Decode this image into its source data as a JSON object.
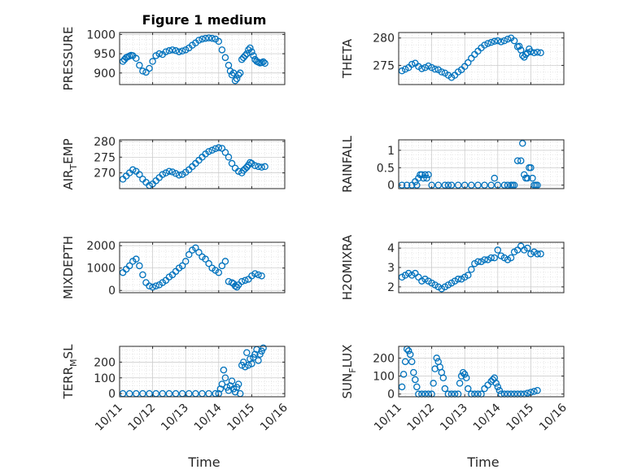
{
  "figure": {
    "title": "Figure 1 medium",
    "xlabel": "Time"
  },
  "chart_data": [
    {
      "type": "scatter",
      "title": "Figure 1 medium",
      "ylabel": "PRESSURE",
      "ylim": [
        870,
        1005
      ],
      "yticks": [
        900,
        950,
        1000
      ],
      "xlim": [
        0,
        5
      ],
      "xticks": [
        0,
        1,
        2,
        3,
        4,
        5
      ],
      "xticklabels": [],
      "color": "#0072BD",
      "grid": true,
      "x": [
        0.1,
        0.15,
        0.2,
        0.25,
        0.3,
        0.35,
        0.4,
        0.5,
        0.6,
        0.7,
        0.8,
        0.9,
        1.0,
        1.1,
        1.2,
        1.3,
        1.4,
        1.5,
        1.6,
        1.7,
        1.8,
        1.9,
        2.0,
        2.1,
        2.2,
        2.3,
        2.4,
        2.5,
        2.6,
        2.7,
        2.8,
        2.9,
        3.0,
        3.1,
        3.2,
        3.3,
        3.35,
        3.4,
        3.45,
        3.5,
        3.55,
        3.6,
        3.65,
        3.7,
        3.75,
        3.8,
        3.85,
        3.9,
        3.95,
        4.0,
        4.05,
        4.1,
        4.15,
        4.2,
        4.25,
        4.3,
        4.35,
        4.4
      ],
      "y": [
        930,
        935,
        940,
        942,
        944,
        946,
        945,
        938,
        920,
        905,
        902,
        912,
        930,
        945,
        950,
        948,
        955,
        958,
        960,
        958,
        955,
        957,
        960,
        965,
        972,
        978,
        985,
        988,
        990,
        991,
        990,
        988,
        982,
        960,
        940,
        920,
        905,
        895,
        900,
        880,
        885,
        895,
        900,
        935,
        940,
        945,
        950,
        960,
        965,
        955,
        945,
        935,
        930,
        928,
        926,
        927,
        929,
        925
      ]
    },
    {
      "type": "scatter",
      "title": "",
      "ylabel": "THETA",
      "ylim": [
        271.5,
        281
      ],
      "yticks": [
        275,
        280
      ],
      "xlim": [
        0,
        5
      ],
      "xticks": [
        0,
        1,
        2,
        3,
        4,
        5
      ],
      "xticklabels": [],
      "color": "#0072BD",
      "grid": true,
      "x": [
        0.1,
        0.2,
        0.3,
        0.4,
        0.5,
        0.6,
        0.7,
        0.8,
        0.9,
        1.0,
        1.1,
        1.2,
        1.3,
        1.4,
        1.5,
        1.6,
        1.7,
        1.8,
        1.9,
        2.0,
        2.1,
        2.2,
        2.3,
        2.4,
        2.5,
        2.6,
        2.7,
        2.8,
        2.9,
        3.0,
        3.1,
        3.2,
        3.3,
        3.4,
        3.5,
        3.6,
        3.65,
        3.7,
        3.75,
        3.8,
        3.85,
        3.9,
        3.95,
        4.0,
        4.1,
        4.2,
        4.3
      ],
      "y": [
        274,
        274.3,
        274.6,
        275.2,
        275.4,
        274.8,
        274.4,
        274.6,
        274.9,
        274.6,
        274.3,
        274.2,
        273.8,
        273.6,
        273.2,
        272.8,
        273.2,
        273.8,
        274.2,
        274.8,
        275.5,
        276.3,
        277,
        277.6,
        278.2,
        278.7,
        279,
        279.2,
        279.4,
        279.5,
        279.3,
        279.5,
        279.8,
        280,
        279.5,
        278.4,
        278.5,
        277.8,
        276.8,
        276.5,
        277,
        277.3,
        278,
        277.5,
        277.3,
        277.4,
        277.3
      ]
    },
    {
      "type": "scatter",
      "title": "",
      "ylabel": "AIR_TEMP",
      "ylim": [
        265,
        280.5
      ],
      "yticks": [
        270,
        275,
        280
      ],
      "xlim": [
        0,
        5
      ],
      "xticks": [
        0,
        1,
        2,
        3,
        4,
        5
      ],
      "xticklabels": [],
      "color": "#0072BD",
      "grid": true,
      "x": [
        0.1,
        0.2,
        0.3,
        0.4,
        0.5,
        0.6,
        0.7,
        0.8,
        0.9,
        1.0,
        1.1,
        1.2,
        1.3,
        1.4,
        1.5,
        1.6,
        1.7,
        1.8,
        1.9,
        2.0,
        2.1,
        2.2,
        2.3,
        2.4,
        2.5,
        2.6,
        2.7,
        2.8,
        2.9,
        3.0,
        3.1,
        3.2,
        3.3,
        3.4,
        3.5,
        3.6,
        3.7,
        3.75,
        3.8,
        3.85,
        3.9,
        3.95,
        4.0,
        4.1,
        4.2,
        4.3,
        4.4
      ],
      "y": [
        268,
        269,
        270,
        271,
        270.5,
        269.5,
        268,
        267,
        266,
        266.5,
        267.5,
        268.5,
        269.5,
        270,
        270.5,
        270.3,
        269.8,
        269.3,
        269.5,
        270.2,
        271,
        272,
        273,
        274,
        275,
        276,
        276.8,
        277.2,
        277.7,
        278,
        277.8,
        276.5,
        275,
        273,
        271.5,
        270.5,
        270,
        270.8,
        271.3,
        271.8,
        272.5,
        273.3,
        273,
        272.3,
        272,
        271.8,
        272
      ]
    },
    {
      "type": "scatter",
      "title": "",
      "ylabel": "RAINFALL",
      "ylim": [
        -0.1,
        1.3
      ],
      "yticks": [
        0,
        0.5,
        1
      ],
      "xlim": [
        0,
        5
      ],
      "xticks": [
        0,
        1,
        2,
        3,
        4,
        5
      ],
      "xticklabels": [],
      "color": "#0072BD",
      "grid": true,
      "x": [
        0.1,
        0.25,
        0.4,
        0.5,
        0.6,
        0.65,
        0.7,
        0.75,
        0.8,
        0.85,
        0.9,
        1.0,
        1.2,
        1.4,
        1.6,
        1.8,
        2.0,
        2.2,
        2.4,
        2.6,
        2.8,
        3.0,
        3.2,
        3.4,
        3.5,
        3.6,
        3.7,
        3.75,
        3.8,
        3.85,
        3.9,
        3.95,
        4.0,
        4.05,
        4.1,
        4.15,
        4.2,
        2.9,
        1.5,
        0.55,
        3.3,
        3.45
      ],
      "y": [
        0,
        0,
        0,
        0.1,
        0.2,
        0.3,
        0.3,
        0.2,
        0.3,
        0.2,
        0.3,
        0,
        0,
        0,
        0,
        0,
        0,
        0,
        0,
        0,
        0,
        0,
        0,
        0,
        0,
        0.7,
        0.7,
        1.2,
        0.3,
        0.2,
        0.2,
        0.5,
        0.5,
        0.2,
        0,
        0,
        0,
        0.2,
        0,
        0,
        0,
        0
      ]
    },
    {
      "type": "scatter",
      "title": "",
      "ylabel": "MIXDEPTH",
      "ylim": [
        -100,
        2150
      ],
      "yticks": [
        0,
        1000,
        2000
      ],
      "xlim": [
        0,
        5
      ],
      "xticks": [
        0,
        1,
        2,
        3,
        4,
        5
      ],
      "xticklabels": [],
      "color": "#0072BD",
      "grid": true,
      "x": [
        0.1,
        0.2,
        0.3,
        0.4,
        0.5,
        0.6,
        0.7,
        0.8,
        0.9,
        1.0,
        1.1,
        1.2,
        1.3,
        1.4,
        1.5,
        1.6,
        1.7,
        1.8,
        1.9,
        2.0,
        2.1,
        2.2,
        2.3,
        2.4,
        2.5,
        2.6,
        2.7,
        2.8,
        2.9,
        3.0,
        3.1,
        3.2,
        3.3,
        3.4,
        3.45,
        3.5,
        3.55,
        3.6,
        3.7,
        3.8,
        3.9,
        4.0,
        4.1,
        4.2,
        4.3
      ],
      "y": [
        800,
        950,
        1100,
        1300,
        1400,
        1100,
        700,
        350,
        200,
        150,
        200,
        250,
        350,
        450,
        600,
        700,
        850,
        1000,
        1100,
        1300,
        1600,
        1800,
        1900,
        1700,
        1500,
        1400,
        1200,
        1000,
        900,
        800,
        1100,
        1300,
        400,
        350,
        300,
        200,
        150,
        250,
        400,
        450,
        500,
        650,
        750,
        700,
        650
      ]
    },
    {
      "type": "scatter",
      "title": "",
      "ylabel": "H2OMIXRA",
      "ylim": [
        1.7,
        4.3
      ],
      "yticks": [
        2,
        3,
        4
      ],
      "xlim": [
        0,
        5
      ],
      "xticks": [
        0,
        1,
        2,
        3,
        4,
        5
      ],
      "xticklabels": [],
      "color": "#0072BD",
      "grid": true,
      "x": [
        0.1,
        0.2,
        0.3,
        0.4,
        0.5,
        0.6,
        0.7,
        0.8,
        0.9,
        1.0,
        1.1,
        1.2,
        1.3,
        1.4,
        1.5,
        1.6,
        1.7,
        1.8,
        1.9,
        2.0,
        2.1,
        2.2,
        2.3,
        2.4,
        2.5,
        2.6,
        2.7,
        2.8,
        2.9,
        3.0,
        3.1,
        3.2,
        3.3,
        3.4,
        3.5,
        3.6,
        3.7,
        3.8,
        3.9,
        4.0,
        4.1,
        4.2,
        4.3
      ],
      "y": [
        2.5,
        2.6,
        2.7,
        2.6,
        2.7,
        2.5,
        2.3,
        2.4,
        2.3,
        2.2,
        2.1,
        2.0,
        1.9,
        2.0,
        2.1,
        2.2,
        2.3,
        2.4,
        2.4,
        2.5,
        2.6,
        2.9,
        3.2,
        3.3,
        3.3,
        3.4,
        3.4,
        3.5,
        3.5,
        3.9,
        3.6,
        3.5,
        3.4,
        3.5,
        3.8,
        3.9,
        4.1,
        3.9,
        4.0,
        3.7,
        3.8,
        3.7,
        3.7
      ]
    },
    {
      "type": "scatter",
      "title": "",
      "ylabel": "TERR_MSL",
      "ylim": [
        -20,
        300
      ],
      "yticks": [
        0,
        100,
        200
      ],
      "xlim": [
        0,
        5
      ],
      "xticks": [
        0,
        1,
        2,
        3,
        4,
        5
      ],
      "xticklabels": [
        "10/11",
        "10/12",
        "10/13",
        "10/14",
        "10/15",
        "10/16"
      ],
      "color": "#0072BD",
      "grid": true,
      "x": [
        0.1,
        0.3,
        0.5,
        0.7,
        0.9,
        1.1,
        1.3,
        1.5,
        1.7,
        1.9,
        2.1,
        2.3,
        2.5,
        2.7,
        2.9,
        3.0,
        3.05,
        3.1,
        3.15,
        3.2,
        3.25,
        3.3,
        3.35,
        3.4,
        3.45,
        3.5,
        3.55,
        3.6,
        3.65,
        3.7,
        3.75,
        3.8,
        3.85,
        3.9,
        3.95,
        4.0,
        4.05,
        4.1,
        4.15,
        4.2,
        4.25,
        4.3,
        4.35
      ],
      "y": [
        0,
        0,
        0,
        0,
        0,
        0,
        0,
        0,
        0,
        0,
        0,
        0,
        0,
        0,
        0,
        0,
        30,
        60,
        150,
        100,
        40,
        20,
        50,
        80,
        30,
        10,
        40,
        60,
        0,
        180,
        200,
        170,
        260,
        180,
        220,
        190,
        230,
        250,
        280,
        210,
        250,
        270,
        290
      ]
    },
    {
      "type": "scatter",
      "title": "",
      "ylabel": "SUN_FLUX",
      "ylim": [
        -15,
        265
      ],
      "yticks": [
        0,
        100,
        200
      ],
      "xlim": [
        0,
        5
      ],
      "xticks": [
        0,
        1,
        2,
        3,
        4,
        5
      ],
      "xticklabels": [
        "10/11",
        "10/12",
        "10/13",
        "10/14",
        "10/15",
        "10/16"
      ],
      "color": "#0072BD",
      "grid": true,
      "x": [
        0.1,
        0.15,
        0.2,
        0.25,
        0.3,
        0.35,
        0.4,
        0.45,
        0.5,
        0.55,
        0.6,
        0.7,
        0.8,
        0.9,
        1.0,
        1.05,
        1.1,
        1.15,
        1.2,
        1.25,
        1.3,
        1.35,
        1.4,
        1.5,
        1.6,
        1.7,
        1.8,
        1.85,
        1.9,
        1.95,
        2.0,
        2.05,
        2.1,
        2.2,
        2.3,
        2.4,
        2.5,
        2.6,
        2.7,
        2.8,
        2.85,
        2.9,
        2.95,
        3.0,
        3.05,
        3.1,
        3.2,
        3.3,
        3.4,
        3.5,
        3.6,
        3.7,
        3.8,
        3.9,
        4.0,
        4.1,
        4.2
      ],
      "y": [
        40,
        110,
        180,
        250,
        240,
        220,
        180,
        120,
        80,
        40,
        0,
        0,
        0,
        0,
        0,
        60,
        140,
        200,
        180,
        150,
        120,
        90,
        30,
        0,
        0,
        0,
        0,
        60,
        100,
        120,
        110,
        90,
        30,
        0,
        0,
        0,
        0,
        30,
        50,
        70,
        80,
        90,
        60,
        40,
        20,
        0,
        0,
        0,
        0,
        0,
        0,
        0,
        0,
        5,
        10,
        15,
        20
      ]
    }
  ]
}
